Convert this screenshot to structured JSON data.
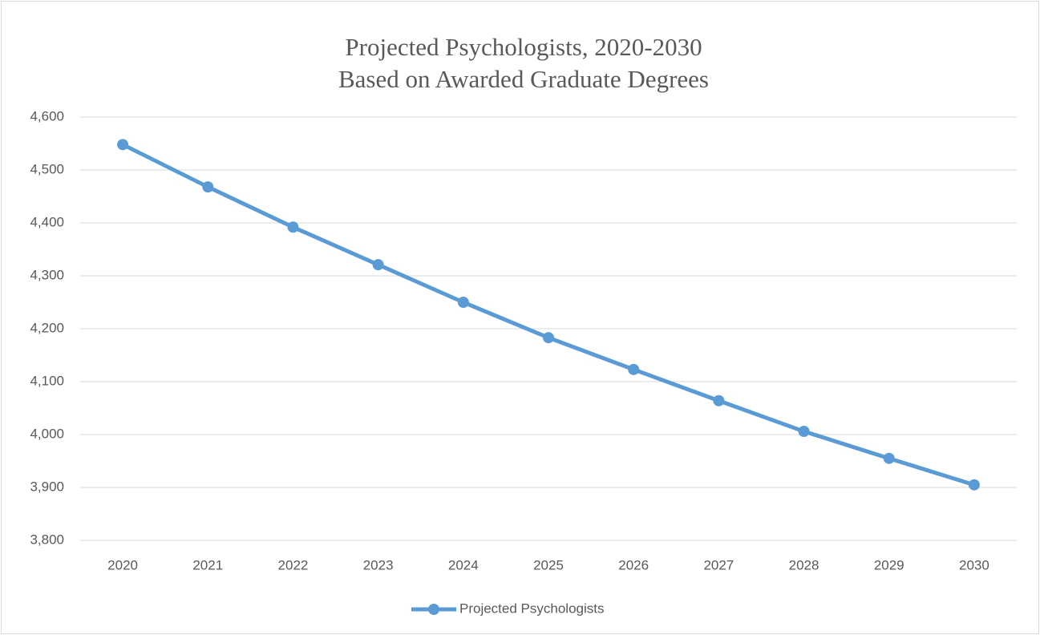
{
  "chart_data": {
    "type": "line",
    "title": "Projected Psychologists, 2020-2030",
    "subtitle": "Based on Awarded Graduate Degrees",
    "categories": [
      "2020",
      "2021",
      "2022",
      "2023",
      "2024",
      "2025",
      "2026",
      "2027",
      "2028",
      "2029",
      "2030"
    ],
    "series": [
      {
        "name": "Projected Psychologists",
        "color": "#5b9bd5",
        "values": [
          4548,
          4468,
          4392,
          4321,
          4250,
          4183,
          4123,
          4064,
          4006,
          3955,
          3905
        ]
      }
    ],
    "ylim": [
      3800,
      4600
    ],
    "yticks": [
      {
        "value": 3800,
        "label": "3,800"
      },
      {
        "value": 3900,
        "label": "3,900"
      },
      {
        "value": 4000,
        "label": "4,000"
      },
      {
        "value": 4100,
        "label": "4,100"
      },
      {
        "value": 4200,
        "label": "4,200"
      },
      {
        "value": 4300,
        "label": "4,300"
      },
      {
        "value": 4400,
        "label": "4,400"
      },
      {
        "value": 4500,
        "label": "4,500"
      },
      {
        "value": 4600,
        "label": "4,600"
      }
    ],
    "grid": true,
    "legend": "bottom"
  }
}
